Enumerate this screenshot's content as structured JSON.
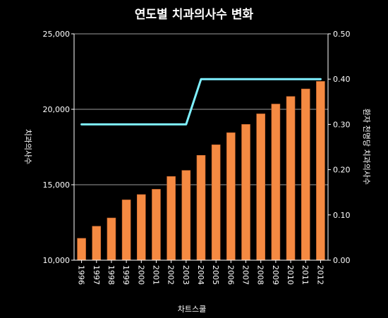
{
  "chart_data": {
    "type": "bar",
    "title": "연도별 치과의사수 변화",
    "footer": "차트스쿨",
    "categories": [
      "1996",
      "1997",
      "1998",
      "1999",
      "2000",
      "2001",
      "2002",
      "2003",
      "2004",
      "2005",
      "2006",
      "2007",
      "2008",
      "2009",
      "2010",
      "2011",
      "2012"
    ],
    "series": [
      {
        "axis": "left",
        "type": "bar",
        "color": "#f58a42",
        "values": [
          11450,
          12250,
          12800,
          14000,
          14350,
          14700,
          15550,
          15950,
          16950,
          17650,
          18450,
          19000,
          19700,
          20350,
          20850,
          21350,
          21850
        ]
      },
      {
        "axis": "right",
        "type": "line",
        "color": "#7ff0ff",
        "values": [
          0.3,
          0.3,
          0.3,
          0.3,
          0.3,
          0.3,
          0.3,
          0.3,
          0.4,
          0.4,
          0.4,
          0.4,
          0.4,
          0.4,
          0.4,
          0.4,
          0.4
        ]
      }
    ],
    "y_left": {
      "label": "치과의사수",
      "ylim": [
        10000,
        25000
      ],
      "ticks": [
        10000,
        15000,
        20000,
        25000
      ],
      "tick_labels": [
        "10,000",
        "15,000",
        "20,000",
        "25,000"
      ]
    },
    "y_right": {
      "label": "환자 천명당 치과의사수",
      "ylim": [
        0,
        0.5
      ],
      "ticks": [
        0,
        0.1,
        0.2,
        0.3,
        0.4,
        0.5
      ],
      "tick_labels": [
        "0.00",
        "0.10",
        "0.20",
        "0.30",
        "0.40",
        "0.50"
      ]
    },
    "grid": true,
    "legend": "none"
  }
}
